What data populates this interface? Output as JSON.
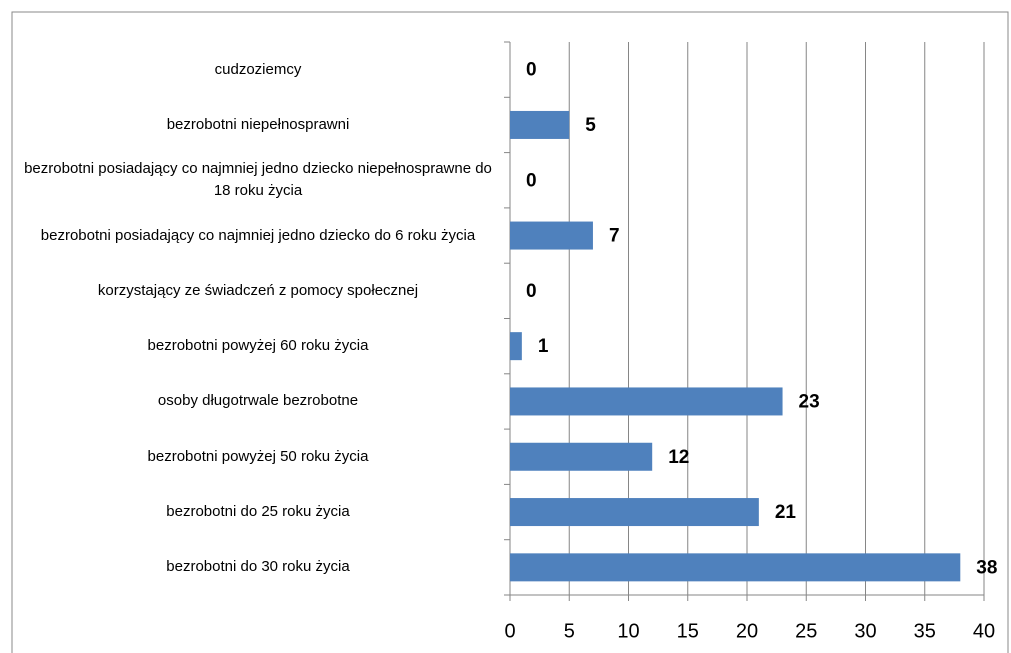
{
  "chart_data": {
    "type": "barh",
    "categories": [
      "cudzoziemcy",
      "bezrobotni niepełnosprawni",
      "bezrobotni posiadający co najmniej jedno dziecko niepełnosprawne do 18 roku życia",
      "bezrobotni posiadający co najmniej jedno dziecko do 6 roku życia",
      "korzystający ze świadczeń z pomocy społecznej",
      "bezrobotni powyżej 60 roku życia",
      "osoby długotrwale bezrobotne",
      "bezrobotni powyżej 50 roku życia",
      "bezrobotni do 25 roku życia",
      "bezrobotni do 30 roku życia"
    ],
    "values": [
      0,
      5,
      0,
      7,
      0,
      1,
      23,
      12,
      21,
      38
    ],
    "color": "#4f81bd",
    "xlim": [
      0,
      40
    ],
    "xticks": [
      0,
      5,
      10,
      15,
      20,
      25,
      30,
      35,
      40
    ],
    "grid": true
  }
}
